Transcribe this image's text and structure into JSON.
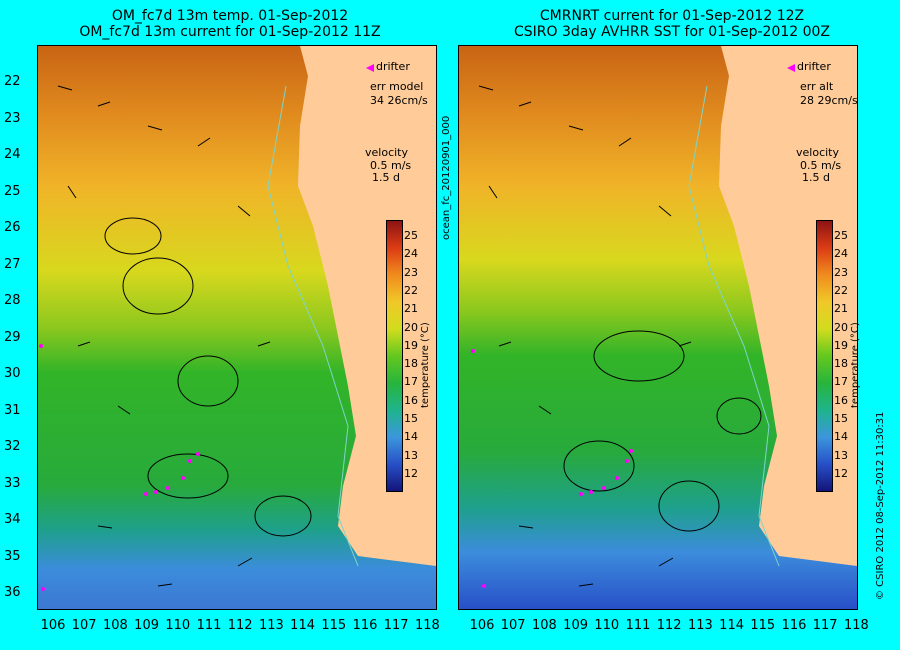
{
  "left": {
    "title1": "OM_fc7d 13m temp. 01-Sep-2012",
    "title2": "OM_fc7d 13m current for 01-Sep-2012 11Z",
    "drifter_label": "drifter",
    "err_label": "err model",
    "err_value": "34 26cm/s",
    "velocity_label": "velocity",
    "velocity_value": "0.5 m/s",
    "velocity_days": "1.5 d",
    "side_text": "ocean_fc_20120901_000"
  },
  "right": {
    "title1": "CMRNRT current for 01-Sep-2012 12Z",
    "title2": "CSIRO 3day AVHRR SST for 01-Sep-2012 00Z",
    "drifter_label": "drifter",
    "err_label": "err alt",
    "err_value": "28 29cm/s",
    "velocity_label": "velocity",
    "velocity_value": "0.5 m/s",
    "velocity_days": "1.5 d",
    "side_text": "© CSIRO 2012   08-Sep-2012 11:30:31"
  },
  "lat_labels": [
    "22",
    "23",
    "24",
    "25",
    "26",
    "27",
    "28",
    "29",
    "30",
    "31",
    "32",
    "33",
    "34",
    "35",
    "36"
  ],
  "lon_labels": [
    "106",
    "107",
    "108",
    "109",
    "110",
    "111",
    "112",
    "113",
    "114",
    "115",
    "116",
    "117",
    "118"
  ],
  "colorbar": {
    "title": "temperature (°C)",
    "ticks": [
      "25",
      "24",
      "23",
      "22",
      "21",
      "20",
      "19",
      "18",
      "17",
      "16",
      "15",
      "14",
      "13",
      "12"
    ]
  },
  "colors": {
    "background": "#00ffff",
    "land": "#ffcc99",
    "drifter": "#ff00ff"
  }
}
